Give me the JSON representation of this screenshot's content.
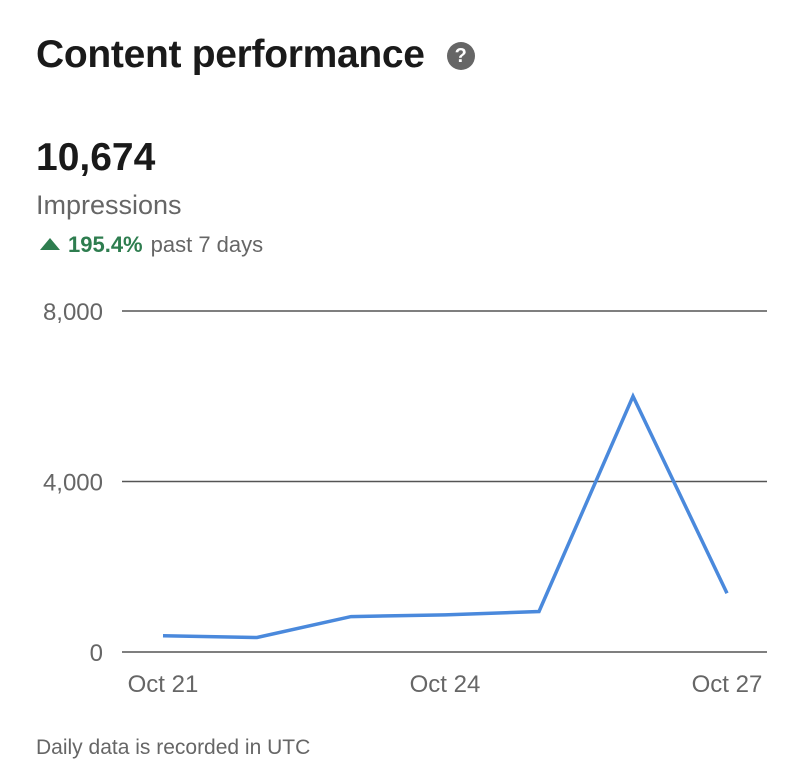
{
  "header": {
    "title": "Content performance",
    "help_icon": "help-icon",
    "help_glyph": "?"
  },
  "metric": {
    "value": "10,674",
    "label": "Impressions",
    "change_percent": "195.4%",
    "change_period": "past 7 days",
    "change_direction": "up",
    "change_color": "#2e7d4f"
  },
  "chart_data": {
    "type": "line",
    "title": "",
    "xlabel": "",
    "ylabel": "",
    "x": [
      "Oct 21",
      "Oct 22",
      "Oct 23",
      "Oct 24",
      "Oct 25",
      "Oct 26",
      "Oct 27"
    ],
    "x_tick_labels": [
      "Oct 21",
      "Oct 24",
      "Oct 27"
    ],
    "y_tick_labels": [
      "0",
      "4,000",
      "8,000"
    ],
    "y_ticks": [
      0,
      4000,
      8000
    ],
    "ylim": [
      0,
      8000
    ],
    "grid": true,
    "series": [
      {
        "values": [
          380,
          340,
          830,
          870,
          950,
          6000,
          1380
        ],
        "color": "#4a89dc"
      }
    ]
  },
  "footnote": "Daily data is recorded in UTC"
}
